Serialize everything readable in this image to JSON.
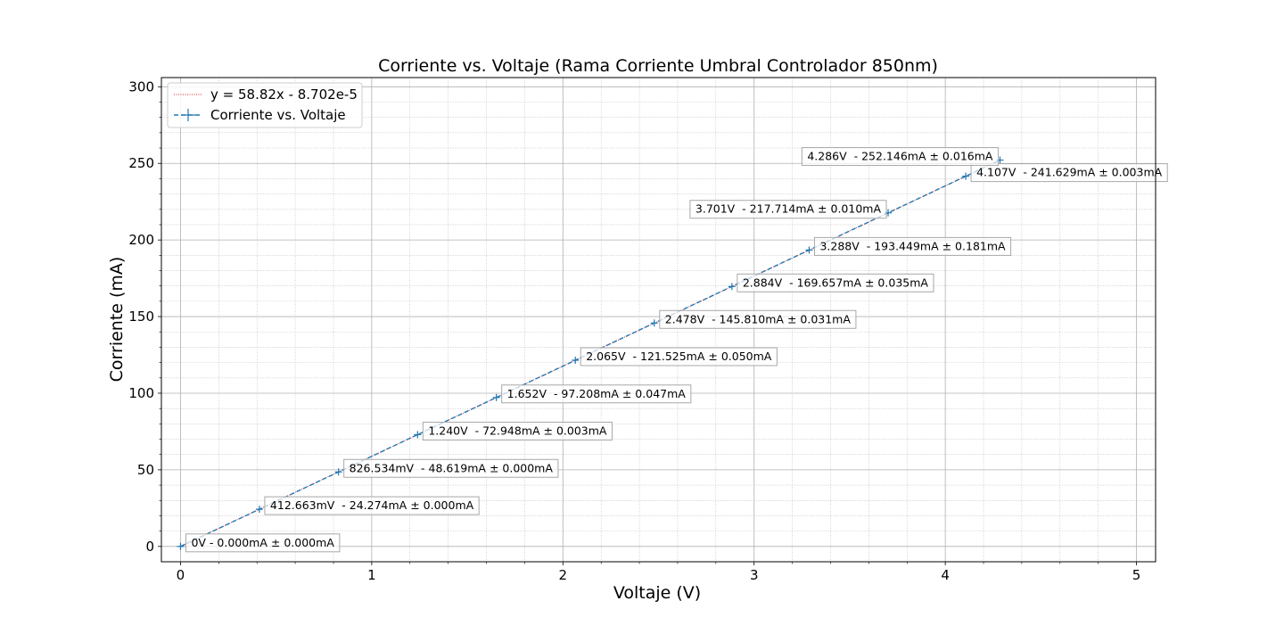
{
  "chart_data": {
    "type": "line",
    "title": "Corriente vs. Voltaje (Rama Corriente Umbral Controlador 850nm)",
    "xlabel": "Voltaje (V)",
    "ylabel": "Corriente (mA)",
    "xlim": [
      -0.1,
      5.1
    ],
    "ylim": [
      -10,
      306
    ],
    "x_ticks": [
      0,
      1,
      2,
      3,
      4,
      5
    ],
    "x_tick_labels": [
      "0",
      "1",
      "2",
      "3",
      "4",
      "5"
    ],
    "y_ticks": [
      0,
      50,
      100,
      150,
      200,
      250,
      300
    ],
    "y_tick_labels": [
      "0",
      "50",
      "100",
      "150",
      "200",
      "250",
      "300"
    ],
    "grid": true,
    "minor_grid": true,
    "legend_position": "top-left",
    "fit": {
      "name": "y = 58.82x - 8.702e-5",
      "slope": 58.82,
      "intercept": -8.702e-05,
      "color": "#d62728"
    },
    "series": [
      {
        "name": "Corriente vs. Voltaje",
        "color": "#1f77b4",
        "x": [
          0,
          0.412663,
          0.826534,
          1.24,
          1.652,
          2.065,
          2.478,
          2.884,
          3.288,
          3.701,
          4.107,
          4.286
        ],
        "y": [
          0,
          24.274,
          48.619,
          72.948,
          97.208,
          121.525,
          145.81,
          169.657,
          193.449,
          217.714,
          241.629,
          252.146
        ],
        "yerr": [
          0.0,
          0.0,
          0.0,
          0.003,
          0.047,
          0.05,
          0.031,
          0.035,
          0.181,
          0.01,
          0.003,
          0.016
        ]
      }
    ],
    "annotations": [
      {
        "text": "0V - 0.000mA ± 0.000mA",
        "side": "right"
      },
      {
        "text": "412.663mV  - 24.274mA ± 0.000mA",
        "side": "right"
      },
      {
        "text": "826.534mV  - 48.619mA ± 0.000mA",
        "side": "right"
      },
      {
        "text": "1.240V  - 72.948mA ± 0.003mA",
        "side": "right"
      },
      {
        "text": "1.652V  - 97.208mA ± 0.047mA",
        "side": "right"
      },
      {
        "text": "2.065V  - 121.525mA ± 0.050mA",
        "side": "right"
      },
      {
        "text": "2.478V  - 145.810mA ± 0.031mA",
        "side": "right"
      },
      {
        "text": "2.884V  - 169.657mA ± 0.035mA",
        "side": "right"
      },
      {
        "text": "3.288V  - 193.449mA ± 0.181mA",
        "side": "right"
      },
      {
        "text": "3.701V  - 217.714mA ± 0.010mA",
        "side": "left"
      },
      {
        "text": "4.107V  - 241.629mA ± 0.003mA",
        "side": "right"
      },
      {
        "text": "4.286V  - 252.146mA ± 0.016mA",
        "side": "left"
      }
    ]
  }
}
